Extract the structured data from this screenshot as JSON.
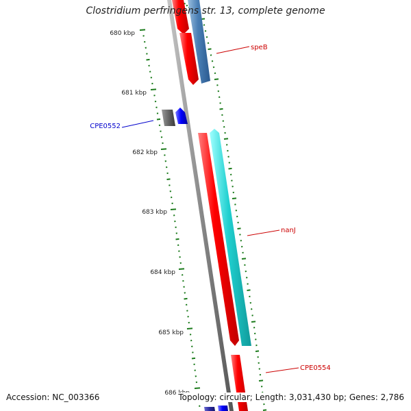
{
  "title": "Clostridium perfringens str. 13, complete genome",
  "footer": {
    "accession": "Accession: NC_003366",
    "summary": "Topology: circular; Length: 3,031,430 bp; Genes: 2,786"
  },
  "colors": {
    "forward_gene": "#ff0000",
    "reverse_gene_speB": "#4a7fb5",
    "reverse_gene_nanJ": "#20d0d0",
    "small_gene": "#0000ff",
    "gray_feature": "#707070",
    "backbone": "#8a8a8a",
    "ticks": "#1a7a1a",
    "forward_label": "#cc0000",
    "reverse_label": "#0000cc"
  },
  "scale": {
    "ticks": [
      {
        "label": "680 kbp"
      },
      {
        "label": "681 kbp"
      },
      {
        "label": "682 kbp"
      },
      {
        "label": "683 kbp"
      },
      {
        "label": "684 kbp"
      },
      {
        "label": "685 kbp"
      },
      {
        "label": "686 kbp"
      }
    ]
  },
  "genes": [
    {
      "name": "speB",
      "label_color": "#cc0000"
    },
    {
      "name": "CPE0552",
      "label_color": "#0000cc"
    },
    {
      "name": "nanJ",
      "label_color": "#cc0000"
    },
    {
      "name": "CPE0554",
      "label_color": "#cc0000"
    }
  ]
}
